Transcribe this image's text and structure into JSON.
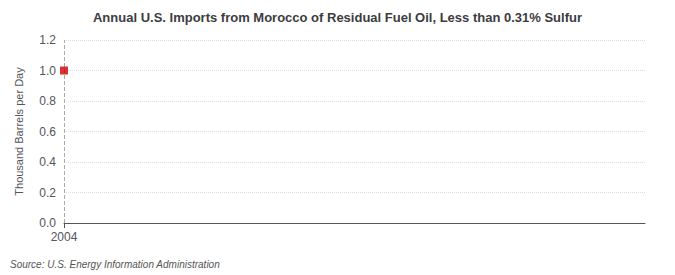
{
  "chart_data": {
    "type": "scatter",
    "title": "Annual U.S. Imports from Morocco of Residual Fuel Oil, Less than 0.31% Sulfur",
    "ylabel": "Thousand Barrels per Day",
    "source": "Source: U.S. Energy Information Administration",
    "x": [
      2004
    ],
    "values": [
      1.0
    ],
    "color": "#cc0000",
    "marker": "square",
    "xlim": [
      2004,
      2020
    ],
    "xticks": [
      2004
    ],
    "ylim": [
      0.0,
      1.2
    ],
    "yticks": [
      {
        "value": 0,
        "label": "0.0"
      },
      0.2,
      0.4,
      0.6,
      0.8,
      {
        "value": 1,
        "label": "1.0"
      },
      1.2
    ],
    "grid": true,
    "vlines": [
      2004
    ]
  }
}
